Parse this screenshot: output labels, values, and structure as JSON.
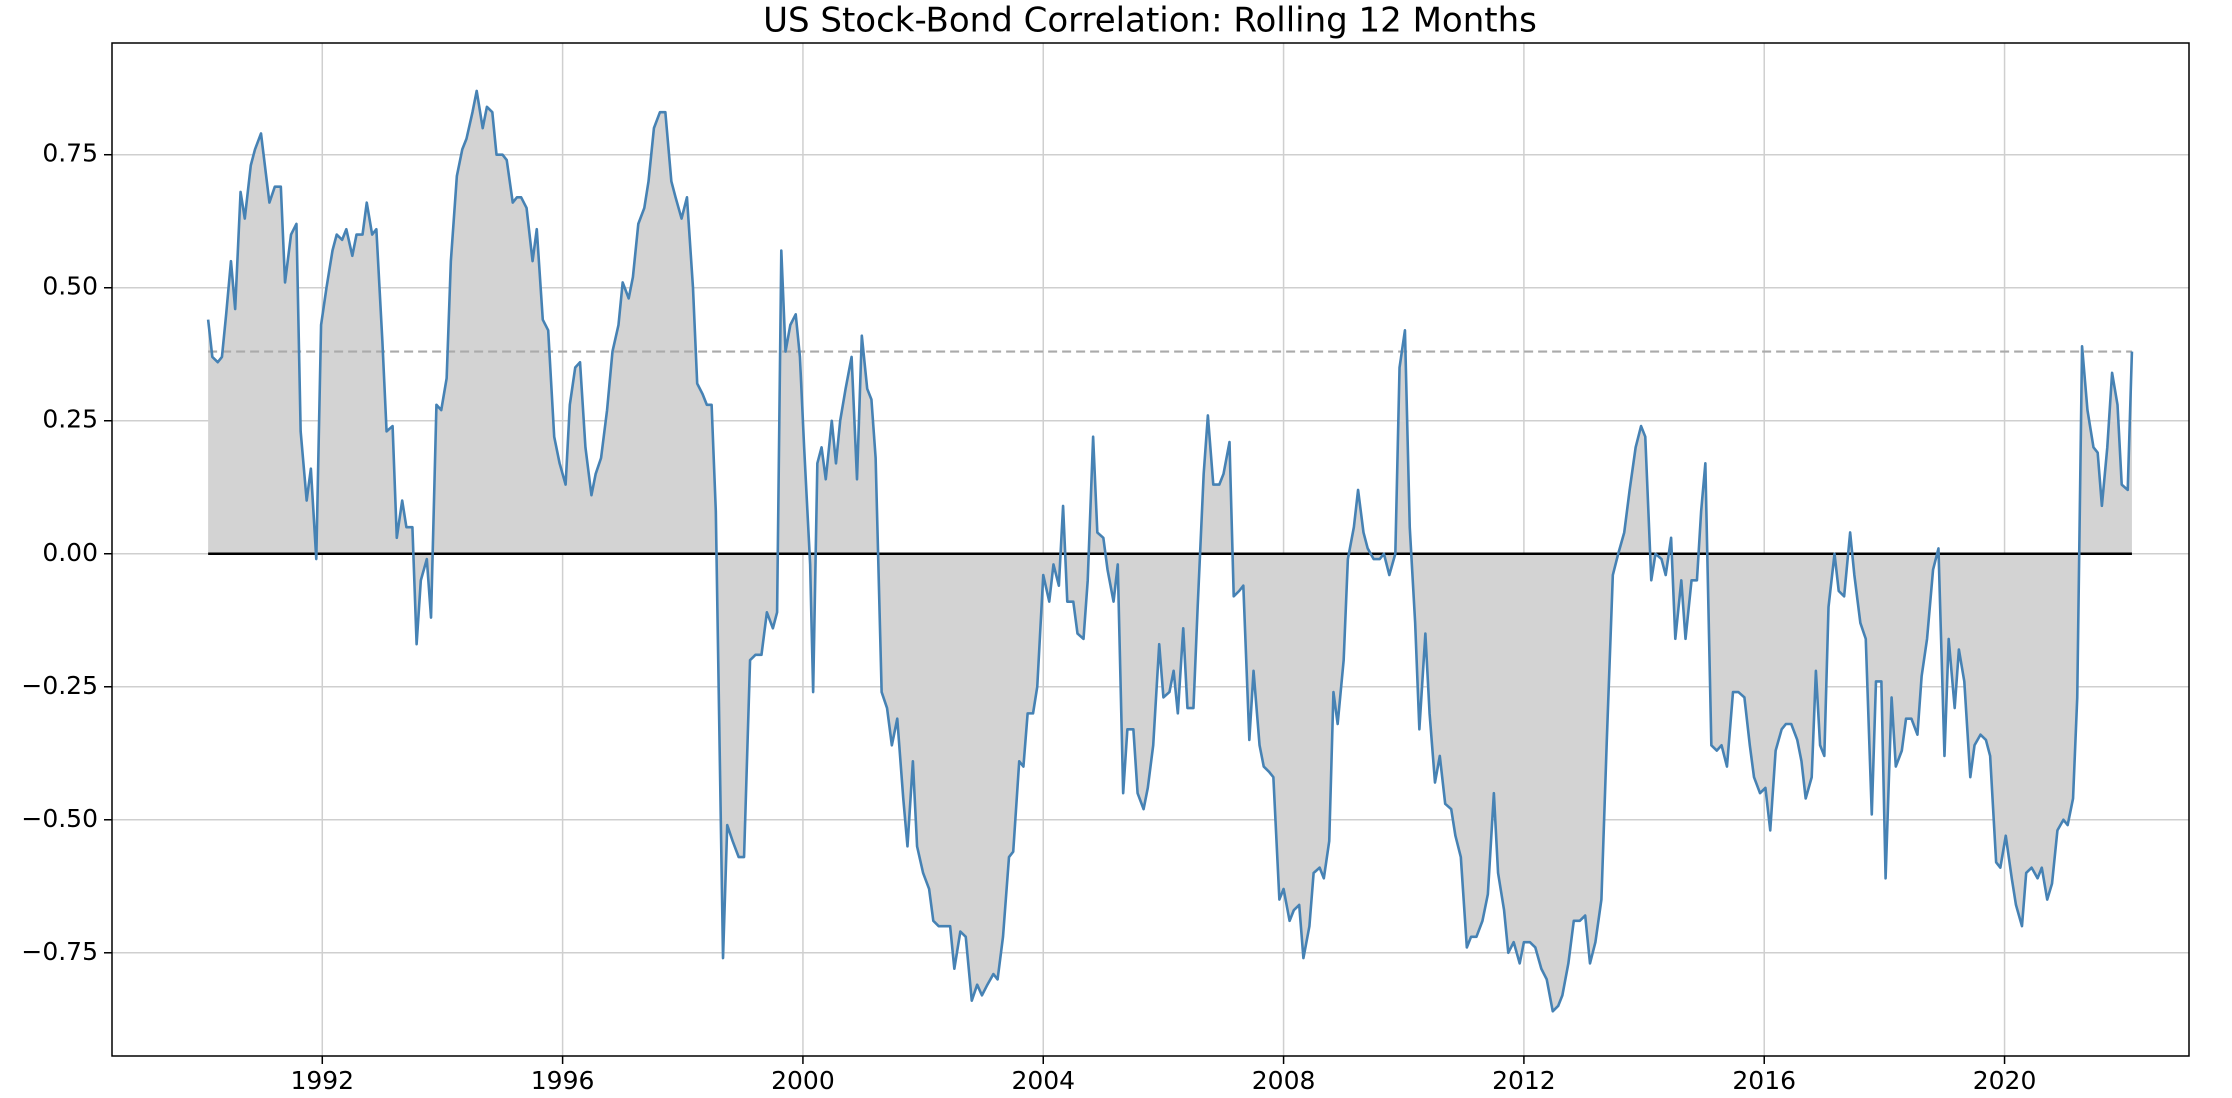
{
  "chart_data": {
    "type": "line",
    "title": "US Stock-Bond Correlation: Rolling 12 Months",
    "x": [
      1990.1,
      1990.17,
      1990.26,
      1990.33,
      1990.4,
      1990.48,
      1990.55,
      1990.64,
      1990.71,
      1990.81,
      1990.88,
      1990.98,
      1991.12,
      1991.21,
      1991.31,
      1991.38,
      1991.48,
      1991.57,
      1991.64,
      1991.74,
      1991.81,
      1991.9,
      1991.98,
      1992.07,
      1992.17,
      1992.24,
      1992.33,
      1992.4,
      1992.5,
      1992.57,
      1992.67,
      1992.74,
      1992.83,
      1992.9,
      1993.0,
      1993.07,
      1993.17,
      1993.24,
      1993.33,
      1993.4,
      1993.5,
      1993.57,
      1993.64,
      1993.74,
      1993.81,
      1993.9,
      1993.98,
      1994.07,
      1994.14,
      1994.24,
      1994.33,
      1994.4,
      1994.5,
      1994.57,
      1994.67,
      1994.74,
      1994.83,
      1994.9,
      1995.0,
      1995.07,
      1995.17,
      1995.24,
      1995.31,
      1995.4,
      1995.5,
      1995.57,
      1995.67,
      1995.76,
      1995.86,
      1995.95,
      1996.05,
      1996.12,
      1996.21,
      1996.29,
      1996.38,
      1996.48,
      1996.55,
      1996.64,
      1996.74,
      1996.83,
      1996.93,
      1997.0,
      1997.1,
      1997.17,
      1997.26,
      1997.36,
      1997.43,
      1997.52,
      1997.62,
      1997.71,
      1997.81,
      1997.88,
      1997.98,
      1998.07,
      1998.17,
      1998.24,
      1998.33,
      1998.4,
      1998.48,
      1998.55,
      1998.67,
      1998.74,
      1998.83,
      1998.93,
      1999.02,
      1999.12,
      1999.21,
      1999.31,
      1999.4,
      1999.5,
      1999.57,
      1999.64,
      1999.71,
      1999.79,
      1999.88,
      1999.95,
      2000.02,
      2000.12,
      2000.17,
      2000.24,
      2000.31,
      2000.38,
      2000.48,
      2000.55,
      2000.62,
      2000.71,
      2000.81,
      2000.9,
      2000.98,
      2001.07,
      2001.14,
      2001.21,
      2001.31,
      2001.4,
      2001.48,
      2001.57,
      2001.67,
      2001.74,
      2001.83,
      2001.9,
      2002.0,
      2002.1,
      2002.17,
      2002.26,
      2002.36,
      2002.45,
      2002.52,
      2002.62,
      2002.71,
      2002.81,
      2002.9,
      2002.98,
      2003.07,
      2003.17,
      2003.24,
      2003.33,
      2003.43,
      2003.5,
      2003.6,
      2003.67,
      2003.74,
      2003.83,
      2003.9,
      2004.0,
      2004.1,
      2004.17,
      2004.26,
      2004.33,
      2004.4,
      2004.5,
      2004.57,
      2004.67,
      2004.74,
      2004.83,
      2004.9,
      2005.0,
      2005.07,
      2005.17,
      2005.24,
      2005.33,
      2005.4,
      2005.5,
      2005.57,
      2005.67,
      2005.74,
      2005.83,
      2005.93,
      2006.0,
      2006.1,
      2006.17,
      2006.24,
      2006.33,
      2006.4,
      2006.5,
      2006.57,
      2006.67,
      2006.74,
      2006.83,
      2006.93,
      2007.0,
      2007.1,
      2007.17,
      2007.26,
      2007.33,
      2007.43,
      2007.5,
      2007.6,
      2007.67,
      2007.76,
      2007.83,
      2007.93,
      2008.0,
      2008.1,
      2008.17,
      2008.26,
      2008.33,
      2008.43,
      2008.5,
      2008.6,
      2008.67,
      2008.76,
      2008.83,
      2008.9,
      2009.0,
      2009.07,
      2009.17,
      2009.24,
      2009.33,
      2009.4,
      2009.5,
      2009.6,
      2009.67,
      2009.76,
      2009.86,
      2009.93,
      2010.02,
      2010.1,
      2010.19,
      2010.26,
      2010.36,
      2010.43,
      2010.52,
      2010.6,
      2010.69,
      2010.79,
      2010.86,
      2010.95,
      2011.05,
      2011.12,
      2011.21,
      2011.31,
      2011.4,
      2011.5,
      2011.57,
      2011.67,
      2011.74,
      2011.83,
      2011.93,
      2012.0,
      2012.1,
      2012.19,
      2012.29,
      2012.38,
      2012.48,
      2012.57,
      2012.64,
      2012.74,
      2012.83,
      2012.93,
      2013.02,
      2013.1,
      2013.19,
      2013.29,
      2013.38,
      2013.48,
      2013.57,
      2013.67,
      2013.76,
      2013.86,
      2013.95,
      2014.02,
      2014.12,
      2014.19,
      2014.29,
      2014.36,
      2014.45,
      2014.52,
      2014.62,
      2014.69,
      2014.79,
      2014.88,
      2014.95,
      2015.02,
      2015.12,
      2015.21,
      2015.29,
      2015.38,
      2015.48,
      2015.57,
      2015.67,
      2015.76,
      2015.83,
      2015.93,
      2016.02,
      2016.1,
      2016.19,
      2016.29,
      2016.36,
      2016.45,
      2016.55,
      2016.62,
      2016.69,
      2016.79,
      2016.86,
      2016.93,
      2017.0,
      2017.07,
      2017.17,
      2017.24,
      2017.33,
      2017.43,
      2017.5,
      2017.6,
      2017.69,
      2017.79,
      2017.86,
      2017.95,
      2018.02,
      2018.12,
      2018.19,
      2018.29,
      2018.36,
      2018.45,
      2018.55,
      2018.62,
      2018.71,
      2018.81,
      2018.9,
      2019.0,
      2019.07,
      2019.17,
      2019.24,
      2019.33,
      2019.43,
      2019.5,
      2019.6,
      2019.69,
      2019.76,
      2019.86,
      2019.93,
      2020.02,
      2020.12,
      2020.19,
      2020.29,
      2020.36,
      2020.45,
      2020.55,
      2020.62,
      2020.71,
      2020.79,
      2020.88,
      2020.98,
      2021.05,
      2021.14,
      2021.21,
      2021.29,
      2021.38,
      2021.48,
      2021.55,
      2021.62,
      2021.71,
      2021.79,
      2021.88,
      2021.95,
      2022.05,
      2022.12
    ],
    "series": [
      {
        "color": "#4682b4",
        "fill": "#d3d3d3",
        "values": [
          0.44,
          0.37,
          0.36,
          0.37,
          0.45,
          0.55,
          0.46,
          0.68,
          0.63,
          0.73,
          0.76,
          0.79,
          0.66,
          0.69,
          0.69,
          0.51,
          0.6,
          0.62,
          0.23,
          0.1,
          0.16,
          -0.01,
          0.43,
          0.5,
          0.57,
          0.6,
          0.59,
          0.61,
          0.56,
          0.6,
          0.6,
          0.66,
          0.6,
          0.61,
          0.4,
          0.23,
          0.24,
          0.03,
          0.1,
          0.05,
          0.05,
          -0.17,
          -0.05,
          -0.01,
          -0.12,
          0.28,
          0.27,
          0.33,
          0.55,
          0.71,
          0.76,
          0.78,
          0.83,
          0.87,
          0.8,
          0.84,
          0.83,
          0.75,
          0.75,
          0.74,
          0.66,
          0.67,
          0.67,
          0.65,
          0.55,
          0.61,
          0.44,
          0.42,
          0.22,
          0.17,
          0.13,
          0.28,
          0.35,
          0.36,
          0.2,
          0.11,
          0.15,
          0.18,
          0.27,
          0.38,
          0.43,
          0.51,
          0.48,
          0.52,
          0.62,
          0.65,
          0.7,
          0.8,
          0.83,
          0.83,
          0.7,
          0.67,
          0.63,
          0.67,
          0.5,
          0.32,
          0.3,
          0.28,
          0.28,
          0.08,
          -0.76,
          -0.51,
          -0.54,
          -0.57,
          -0.57,
          -0.2,
          -0.19,
          -0.19,
          -0.11,
          -0.14,
          -0.11,
          0.57,
          0.38,
          0.43,
          0.45,
          0.37,
          0.2,
          -0.02,
          -0.26,
          0.17,
          0.2,
          0.14,
          0.25,
          0.17,
          0.25,
          0.31,
          0.37,
          0.14,
          0.41,
          0.31,
          0.29,
          0.18,
          -0.26,
          -0.29,
          -0.36,
          -0.31,
          -0.46,
          -0.55,
          -0.39,
          -0.55,
          -0.6,
          -0.63,
          -0.69,
          -0.7,
          -0.7,
          -0.7,
          -0.78,
          -0.71,
          -0.72,
          -0.84,
          -0.81,
          -0.83,
          -0.81,
          -0.79,
          -0.8,
          -0.72,
          -0.57,
          -0.56,
          -0.39,
          -0.4,
          -0.3,
          -0.3,
          -0.25,
          -0.04,
          -0.09,
          -0.02,
          -0.06,
          0.09,
          -0.09,
          -0.09,
          -0.15,
          -0.16,
          -0.05,
          0.22,
          0.04,
          0.03,
          -0.03,
          -0.09,
          -0.02,
          -0.45,
          -0.33,
          -0.33,
          -0.45,
          -0.48,
          -0.44,
          -0.36,
          -0.17,
          -0.27,
          -0.26,
          -0.22,
          -0.3,
          -0.14,
          -0.29,
          -0.29,
          -0.1,
          0.15,
          0.26,
          0.13,
          0.13,
          0.15,
          0.21,
          -0.08,
          -0.07,
          -0.06,
          -0.35,
          -0.22,
          -0.36,
          -0.4,
          -0.41,
          -0.42,
          -0.65,
          -0.63,
          -0.69,
          -0.67,
          -0.66,
          -0.76,
          -0.7,
          -0.6,
          -0.59,
          -0.61,
          -0.54,
          -0.26,
          -0.32,
          -0.2,
          -0.01,
          0.05,
          0.12,
          0.04,
          0.01,
          -0.01,
          -0.01,
          0.0,
          -0.04,
          0.0,
          0.35,
          0.42,
          0.05,
          -0.13,
          -0.33,
          -0.15,
          -0.3,
          -0.43,
          -0.38,
          -0.47,
          -0.48,
          -0.53,
          -0.57,
          -0.74,
          -0.72,
          -0.72,
          -0.69,
          -0.64,
          -0.45,
          -0.6,
          -0.67,
          -0.75,
          -0.73,
          -0.77,
          -0.73,
          -0.73,
          -0.74,
          -0.78,
          -0.8,
          -0.86,
          -0.85,
          -0.83,
          -0.77,
          -0.69,
          -0.69,
          -0.68,
          -0.77,
          -0.73,
          -0.65,
          -0.35,
          -0.04,
          0.0,
          0.04,
          0.12,
          0.2,
          0.24,
          0.22,
          -0.05,
          0.0,
          -0.01,
          -0.04,
          0.03,
          -0.16,
          -0.05,
          -0.16,
          -0.05,
          -0.05,
          0.08,
          0.17,
          -0.36,
          -0.37,
          -0.36,
          -0.4,
          -0.26,
          -0.26,
          -0.27,
          -0.36,
          -0.42,
          -0.45,
          -0.44,
          -0.52,
          -0.37,
          -0.33,
          -0.32,
          -0.32,
          -0.35,
          -0.39,
          -0.46,
          -0.42,
          -0.22,
          -0.36,
          -0.38,
          -0.1,
          0.0,
          -0.07,
          -0.08,
          0.04,
          -0.04,
          -0.13,
          -0.16,
          -0.49,
          -0.24,
          -0.24,
          -0.61,
          -0.27,
          -0.4,
          -0.37,
          -0.31,
          -0.31,
          -0.34,
          -0.23,
          -0.16,
          -0.03,
          0.01,
          -0.38,
          -0.16,
          -0.29,
          -0.18,
          -0.24,
          -0.42,
          -0.36,
          -0.34,
          -0.35,
          -0.38,
          -0.58,
          -0.59,
          -0.53,
          -0.61,
          -0.66,
          -0.7,
          -0.6,
          -0.59,
          -0.61,
          -0.59,
          -0.65,
          -0.62,
          -0.52,
          -0.5,
          -0.51,
          -0.46,
          -0.27,
          0.39,
          0.27,
          0.2,
          0.19,
          0.09,
          0.2,
          0.34,
          0.28,
          0.13,
          0.12,
          0.38
        ]
      }
    ],
    "reference_line": {
      "value": 0.38,
      "color": "#aaaaaa",
      "dashed": true
    },
    "baseline": {
      "value": 0,
      "color": "#000000"
    },
    "xlim": [
      1988.5,
      2023.07
    ],
    "ylim": [
      -0.944,
      0.96
    ],
    "xticks": [
      1992,
      1996,
      2000,
      2004,
      2008,
      2012,
      2016,
      2020
    ],
    "yticks": [
      {
        "value": -0.75,
        "label": "−0.75"
      },
      {
        "value": -0.5,
        "label": "−0.50"
      },
      {
        "value": -0.25,
        "label": "−0.25"
      },
      {
        "value": 0,
        "label": "0.00"
      },
      0.25,
      {
        "value": 0.5,
        "label": "0.50"
      },
      0.75
    ],
    "grid": true
  }
}
